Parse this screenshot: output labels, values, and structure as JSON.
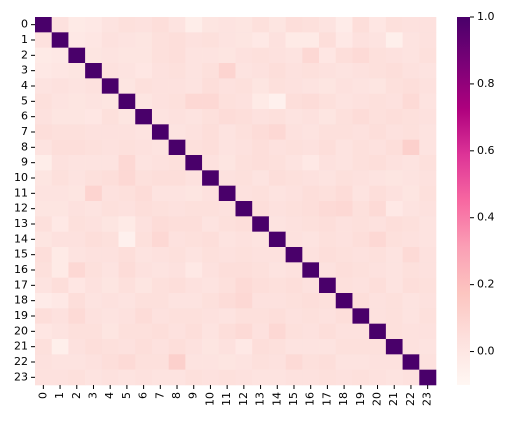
{
  "chart_data": {
    "type": "heatmap",
    "categories": [
      "0",
      "1",
      "2",
      "3",
      "4",
      "5",
      "6",
      "7",
      "8",
      "9",
      "10",
      "11",
      "12",
      "13",
      "14",
      "15",
      "16",
      "17",
      "18",
      "19",
      "20",
      "21",
      "22",
      "23"
    ],
    "zlim": [
      -0.1,
      1
    ],
    "zticks": [
      {
        "value": 0,
        "label": "0.0"
      },
      0.2,
      0.4,
      0.6,
      0.8,
      {
        "value": 1,
        "label": "1.0"
      }
    ],
    "colormap": [
      "#fff7f3",
      "#fde0dd",
      "#fcc5c0",
      "#fa9fb5",
      "#f768a1",
      "#dd3497",
      "#ae017e",
      "#7a0177",
      "#49006a"
    ],
    "values": [
      [
        1,
        0.03,
        -0.02,
        -0.01,
        0.02,
        0.04,
        0.03,
        0.05,
        0.02,
        -0.04,
        0.01,
        0.02,
        0.01,
        0.04,
        0.01,
        0.05,
        0.04,
        0.02,
        -0.03,
        0.05,
        0.0,
        0.04,
        0.03,
        0.03
      ],
      [
        0.03,
        1,
        -0.01,
        0.0,
        0.03,
        0.02,
        0.01,
        0.04,
        0.05,
        0.03,
        0.04,
        0.02,
        0.01,
        -0.01,
        0.03,
        -0.02,
        -0.02,
        0.05,
        -0.01,
        0.03,
        0.02,
        -0.05,
        0.02,
        0.03
      ],
      [
        -0.02,
        -0.01,
        1,
        0.01,
        0.02,
        0.01,
        0.01,
        0.04,
        0.05,
        0.02,
        0.02,
        0.01,
        0.03,
        0.04,
        0.03,
        0.02,
        0.08,
        0.0,
        0.05,
        0.07,
        0.04,
        0.03,
        0.02,
        0.04
      ],
      [
        -0.01,
        0.0,
        0.01,
        1,
        0.03,
        0.02,
        0.0,
        0.03,
        0.04,
        0.02,
        0.04,
        0.1,
        0.02,
        0.03,
        0.05,
        0.03,
        0.04,
        0.03,
        0.02,
        0.03,
        0.04,
        0.05,
        0.03,
        0.02
      ],
      [
        0.02,
        0.03,
        0.02,
        0.03,
        1,
        0.01,
        0.04,
        0.03,
        0.03,
        0.02,
        0.05,
        0.03,
        0.04,
        0.01,
        0.04,
        0.03,
        0.02,
        0.01,
        0.03,
        0.02,
        0.01,
        0.04,
        0.05,
        0.03
      ],
      [
        0.04,
        0.02,
        0.01,
        0.02,
        0.01,
        1,
        0.01,
        0.03,
        0.04,
        0.08,
        0.08,
        0.04,
        0.03,
        -0.02,
        -0.06,
        0.05,
        0.06,
        0.04,
        0.02,
        0.03,
        0.04,
        0.03,
        0.07,
        0.02
      ],
      [
        0.03,
        0.01,
        0.01,
        0.0,
        0.04,
        0.01,
        1,
        0.02,
        0.03,
        0.02,
        0.04,
        0.06,
        0.05,
        0.03,
        0.04,
        0.02,
        0.03,
        0.01,
        0.04,
        0.06,
        0.04,
        0.05,
        0.04,
        0.03
      ],
      [
        0.05,
        0.04,
        0.04,
        0.03,
        0.03,
        0.03,
        0.02,
        1,
        0.02,
        0.03,
        0.05,
        0.02,
        0.04,
        0.06,
        0.08,
        0.03,
        0.02,
        0.04,
        0.04,
        0.03,
        0.05,
        0.03,
        0.04,
        0.02
      ],
      [
        0.02,
        0.05,
        0.05,
        0.04,
        0.03,
        0.04,
        0.03,
        0.02,
        1,
        0.04,
        0.05,
        0.02,
        0.03,
        0.05,
        0.03,
        0.04,
        0.03,
        0.05,
        0.02,
        0.04,
        0.03,
        0.05,
        0.12,
        0.02
      ],
      [
        -0.04,
        0.03,
        0.02,
        0.02,
        0.02,
        0.08,
        0.02,
        0.03,
        0.04,
        1,
        0.03,
        0.01,
        0.04,
        0.05,
        0.04,
        0.02,
        -0.01,
        0.03,
        0.02,
        0.04,
        0.05,
        0.03,
        0.02,
        0.04
      ],
      [
        0.01,
        0.04,
        0.02,
        0.04,
        0.05,
        0.08,
        0.04,
        0.05,
        0.05,
        0.03,
        1,
        0.03,
        0.04,
        0.02,
        0.05,
        0.04,
        0.03,
        0.02,
        0.04,
        0.03,
        0.02,
        0.01,
        0.02,
        0.03
      ],
      [
        0.02,
        0.02,
        0.01,
        0.1,
        0.03,
        0.04,
        0.06,
        0.02,
        0.02,
        0.01,
        0.03,
        1,
        0.03,
        0.04,
        0.02,
        0.03,
        0.05,
        0.04,
        0.06,
        0.02,
        0.05,
        0.03,
        0.01,
        0.04
      ],
      [
        0.01,
        0.01,
        0.03,
        0.02,
        0.04,
        0.03,
        0.05,
        0.04,
        0.03,
        0.04,
        0.04,
        0.03,
        1,
        0.05,
        0.03,
        0.04,
        0.05,
        0.07,
        0.08,
        0.04,
        0.07,
        -0.01,
        0.02,
        0.03
      ],
      [
        0.04,
        -0.01,
        0.04,
        0.03,
        0.01,
        -0.02,
        0.03,
        0.06,
        0.05,
        0.05,
        0.02,
        0.04,
        0.05,
        1,
        0.02,
        0.03,
        0.04,
        0.05,
        0.03,
        0.04,
        0.03,
        0.05,
        0.04,
        0.02
      ],
      [
        0.01,
        0.03,
        0.03,
        0.05,
        0.04,
        -0.06,
        0.04,
        0.08,
        0.03,
        0.04,
        0.05,
        0.02,
        0.03,
        0.02,
        1,
        0.03,
        0.02,
        0.04,
        0.03,
        0.05,
        0.08,
        0.04,
        0.03,
        0.02
      ],
      [
        0.05,
        -0.02,
        0.02,
        0.03,
        0.03,
        0.05,
        0.02,
        0.03,
        0.04,
        0.02,
        0.04,
        0.03,
        0.04,
        0.03,
        0.03,
        1,
        0.03,
        0.05,
        0.04,
        0.03,
        0.04,
        0.02,
        0.07,
        0.03
      ],
      [
        0.04,
        -0.02,
        0.08,
        0.04,
        0.02,
        0.06,
        0.03,
        0.02,
        0.03,
        -0.01,
        0.03,
        0.05,
        0.05,
        0.04,
        0.02,
        0.03,
        1,
        0.03,
        0.05,
        0.04,
        0.03,
        0.02,
        0.04,
        0.03
      ],
      [
        0.02,
        0.05,
        0.0,
        0.03,
        0.01,
        0.04,
        0.01,
        0.04,
        0.05,
        0.03,
        0.02,
        0.04,
        0.07,
        0.05,
        0.04,
        0.05,
        0.03,
        1,
        0.04,
        0.03,
        0.05,
        0.02,
        0.05,
        0.04
      ],
      [
        -0.03,
        -0.01,
        0.05,
        0.02,
        0.03,
        0.02,
        0.04,
        0.04,
        0.02,
        0.02,
        0.04,
        0.06,
        0.08,
        0.03,
        0.03,
        0.04,
        0.05,
        0.04,
        1,
        0.05,
        0.03,
        0.04,
        0.02,
        0.03
      ],
      [
        0.05,
        0.03,
        0.07,
        0.03,
        0.02,
        0.03,
        0.06,
        0.03,
        0.04,
        0.04,
        0.03,
        0.02,
        0.04,
        0.04,
        0.05,
        0.03,
        0.04,
        0.03,
        0.05,
        1,
        0.03,
        0.04,
        0.02,
        0.04
      ],
      [
        0.0,
        0.02,
        0.04,
        0.04,
        0.01,
        0.04,
        0.04,
        0.05,
        0.03,
        0.05,
        0.02,
        0.05,
        0.07,
        0.03,
        0.08,
        0.04,
        0.03,
        0.05,
        0.03,
        0.03,
        1,
        0.04,
        0.03,
        0.03
      ],
      [
        0.04,
        -0.05,
        0.03,
        0.05,
        0.04,
        0.03,
        0.05,
        0.03,
        0.05,
        0.03,
        0.01,
        0.03,
        -0.01,
        0.05,
        0.04,
        0.02,
        0.02,
        0.02,
        0.04,
        0.04,
        0.04,
        1,
        0.03,
        0.02
      ],
      [
        0.03,
        0.02,
        0.02,
        0.03,
        0.05,
        0.07,
        0.04,
        0.04,
        0.12,
        0.02,
        0.02,
        0.01,
        0.02,
        0.04,
        0.03,
        0.07,
        0.04,
        0.05,
        0.02,
        0.02,
        0.03,
        0.03,
        1,
        0.03
      ],
      [
        0.03,
        0.03,
        0.04,
        0.02,
        0.03,
        0.02,
        0.03,
        0.02,
        0.02,
        0.04,
        0.03,
        0.04,
        0.03,
        0.02,
        0.02,
        0.03,
        0.03,
        0.04,
        0.03,
        0.04,
        0.03,
        0.02,
        0.03,
        1
      ]
    ]
  }
}
